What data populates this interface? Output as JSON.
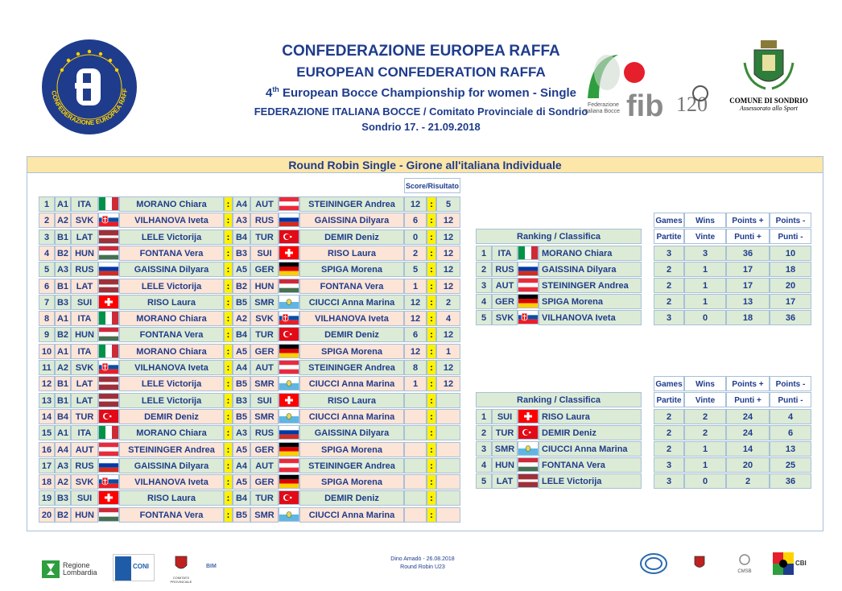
{
  "header": {
    "line1": "CONFEDERAZIONE EUROPEA RAFFA",
    "line2": "EUROPEAN CONFEDERATION RAFFA",
    "line3_ord": "4",
    "line3_sup": "th",
    "line3_rest": " European Bocce Championship for women - Single",
    "line4": "FEDERAZIONE ITALIANA BOCCE / Comitato Provinciale di Sondrio",
    "line5": "Sondrio 17. - 21.09.2018"
  },
  "logos": {
    "left_ring": "CONFEDERAZIONE EUROPEA RAFFA",
    "fib_small1": "Federazione",
    "fib_small2": "Italiana Bocce",
    "fib_big": "fib",
    "sondrio_line1": "COMUNE DI SONDRIO",
    "sondrio_line2": "Assessorato allo Sport"
  },
  "panel_title": "Round Robin Single - Girone all'italiana Individuale",
  "score_header": "Score/Risultato",
  "colon": ":",
  "matches": [
    {
      "n": "1",
      "g1": "A1",
      "c1": "ITA",
      "p1": "MORANO Chiara",
      "g2": "A4",
      "c2": "AUT",
      "p2": "STEININGER Andrea",
      "s1": "12",
      "s2": "5"
    },
    {
      "n": "2",
      "g1": "A2",
      "c1": "SVK",
      "p1": "VILHANOVA Iveta",
      "g2": "A3",
      "c2": "RUS",
      "p2": "GAISSINA Dilyara",
      "s1": "6",
      "s2": "12"
    },
    {
      "n": "3",
      "g1": "B1",
      "c1": "LAT",
      "p1": "LELE Victorija",
      "g2": "B4",
      "c2": "TUR",
      "p2": "DEMIR Deniz",
      "s1": "0",
      "s2": "12"
    },
    {
      "n": "4",
      "g1": "B2",
      "c1": "HUN",
      "p1": "FONTANA Vera",
      "g2": "B3",
      "c2": "SUI",
      "p2": "RISO Laura",
      "s1": "2",
      "s2": "12"
    },
    {
      "n": "5",
      "g1": "A3",
      "c1": "RUS",
      "p1": "GAISSINA Dilyara",
      "g2": "A5",
      "c2": "GER",
      "p2": "SPIGA Morena",
      "s1": "5",
      "s2": "12"
    },
    {
      "n": "6",
      "g1": "B1",
      "c1": "LAT",
      "p1": "LELE Victorija",
      "g2": "B2",
      "c2": "HUN",
      "p2": "FONTANA Vera",
      "s1": "1",
      "s2": "12"
    },
    {
      "n": "7",
      "g1": "B3",
      "c1": "SUI",
      "p1": "RISO Laura",
      "g2": "B5",
      "c2": "SMR",
      "p2": "CIUCCI Anna Marina",
      "s1": "12",
      "s2": "2"
    },
    {
      "n": "8",
      "g1": "A1",
      "c1": "ITA",
      "p1": "MORANO Chiara",
      "g2": "A2",
      "c2": "SVK",
      "p2": "VILHANOVA Iveta",
      "s1": "12",
      "s2": "4"
    },
    {
      "n": "9",
      "g1": "B2",
      "c1": "HUN",
      "p1": "FONTANA Vera",
      "g2": "B4",
      "c2": "TUR",
      "p2": "DEMIR Deniz",
      "s1": "6",
      "s2": "12"
    },
    {
      "n": "10",
      "g1": "A1",
      "c1": "ITA",
      "p1": "MORANO Chiara",
      "g2": "A5",
      "c2": "GER",
      "p2": "SPIGA Morena",
      "s1": "12",
      "s2": "1"
    },
    {
      "n": "11",
      "g1": "A2",
      "c1": "SVK",
      "p1": "VILHANOVA Iveta",
      "g2": "A4",
      "c2": "AUT",
      "p2": "STEININGER Andrea",
      "s1": "8",
      "s2": "12"
    },
    {
      "n": "12",
      "g1": "B1",
      "c1": "LAT",
      "p1": "LELE Victorija",
      "g2": "B5",
      "c2": "SMR",
      "p2": "CIUCCI Anna Marina",
      "s1": "1",
      "s2": "12"
    },
    {
      "n": "13",
      "g1": "B1",
      "c1": "LAT",
      "p1": "LELE Victorija",
      "g2": "B3",
      "c2": "SUI",
      "p2": "RISO Laura",
      "s1": "",
      "s2": ""
    },
    {
      "n": "14",
      "g1": "B4",
      "c1": "TUR",
      "p1": "DEMIR Deniz",
      "g2": "B5",
      "c2": "SMR",
      "p2": "CIUCCI Anna Marina",
      "s1": "",
      "s2": ""
    },
    {
      "n": "15",
      "g1": "A1",
      "c1": "ITA",
      "p1": "MORANO Chiara",
      "g2": "A3",
      "c2": "RUS",
      "p2": "GAISSINA Dilyara",
      "s1": "",
      "s2": ""
    },
    {
      "n": "16",
      "g1": "A4",
      "c1": "AUT",
      "p1": "STEININGER Andrea",
      "g2": "A5",
      "c2": "GER",
      "p2": "SPIGA Morena",
      "s1": "",
      "s2": ""
    },
    {
      "n": "17",
      "g1": "A3",
      "c1": "RUS",
      "p1": "GAISSINA Dilyara",
      "g2": "A4",
      "c2": "AUT",
      "p2": "STEININGER Andrea",
      "s1": "",
      "s2": ""
    },
    {
      "n": "18",
      "g1": "A2",
      "c1": "SVK",
      "p1": "VILHANOVA Iveta",
      "g2": "A5",
      "c2": "GER",
      "p2": "SPIGA Morena",
      "s1": "",
      "s2": ""
    },
    {
      "n": "19",
      "g1": "B3",
      "c1": "SUI",
      "p1": "RISO Laura",
      "g2": "B4",
      "c2": "TUR",
      "p2": "DEMIR Deniz",
      "s1": "",
      "s2": ""
    },
    {
      "n": "20",
      "g1": "B2",
      "c1": "HUN",
      "p1": "FONTANA Vera",
      "g2": "B5",
      "c2": "SMR",
      "p2": "CIUCCI Anna Marina",
      "s1": "",
      "s2": ""
    }
  ],
  "stats_header": {
    "row1": [
      "Games",
      "Wins",
      "Points +",
      "Points -"
    ],
    "row2": [
      "Partite",
      "Vinte",
      "Punti +",
      "Punti -"
    ]
  },
  "ranking_title": "Ranking / Classifica",
  "rankingA": [
    {
      "pos": "1",
      "c": "ITA",
      "name": "MORANO Chiara",
      "games": "3",
      "wins": "3",
      "pp": "36",
      "pm": "10"
    },
    {
      "pos": "2",
      "c": "RUS",
      "name": "GAISSINA Dilyara",
      "games": "2",
      "wins": "1",
      "pp": "17",
      "pm": "18"
    },
    {
      "pos": "3",
      "c": "AUT",
      "name": "STEININGER Andrea",
      "games": "2",
      "wins": "1",
      "pp": "17",
      "pm": "20"
    },
    {
      "pos": "4",
      "c": "GER",
      "name": "SPIGA Morena",
      "games": "2",
      "wins": "1",
      "pp": "13",
      "pm": "17"
    },
    {
      "pos": "5",
      "c": "SVK",
      "name": "VILHANOVA Iveta",
      "games": "3",
      "wins": "0",
      "pp": "18",
      "pm": "36"
    }
  ],
  "rankingB": [
    {
      "pos": "1",
      "c": "SUI",
      "name": "RISO Laura",
      "games": "2",
      "wins": "2",
      "pp": "24",
      "pm": "4"
    },
    {
      "pos": "2",
      "c": "TUR",
      "name": "DEMIR Deniz",
      "games": "2",
      "wins": "2",
      "pp": "24",
      "pm": "6"
    },
    {
      "pos": "3",
      "c": "SMR",
      "name": "CIUCCI Anna Marina",
      "games": "2",
      "wins": "1",
      "pp": "14",
      "pm": "13"
    },
    {
      "pos": "4",
      "c": "HUN",
      "name": "FONTANA Vera",
      "games": "3",
      "wins": "1",
      "pp": "20",
      "pm": "25"
    },
    {
      "pos": "5",
      "c": "LAT",
      "name": "LELE Victorija",
      "games": "3",
      "wins": "0",
      "pp": "2",
      "pm": "36"
    }
  ],
  "footer": {
    "lombardia1": "Regione",
    "lombardia2": "Lombardia",
    "coni": "CONI",
    "comitato": "COMITATO PROVINCIALE",
    "bim": "BIM",
    "center1": "Dino Amadò - 26.08.2018",
    "center2": "Round Robin U23",
    "cmsb": "CMSB",
    "cbi": "CBI"
  },
  "colors": {
    "green_row": "#dcebd6",
    "pink_row": "#fce4d6",
    "yellow": "#fff200",
    "title_bg": "#fce6a8",
    "text": "#1f3c8c"
  }
}
